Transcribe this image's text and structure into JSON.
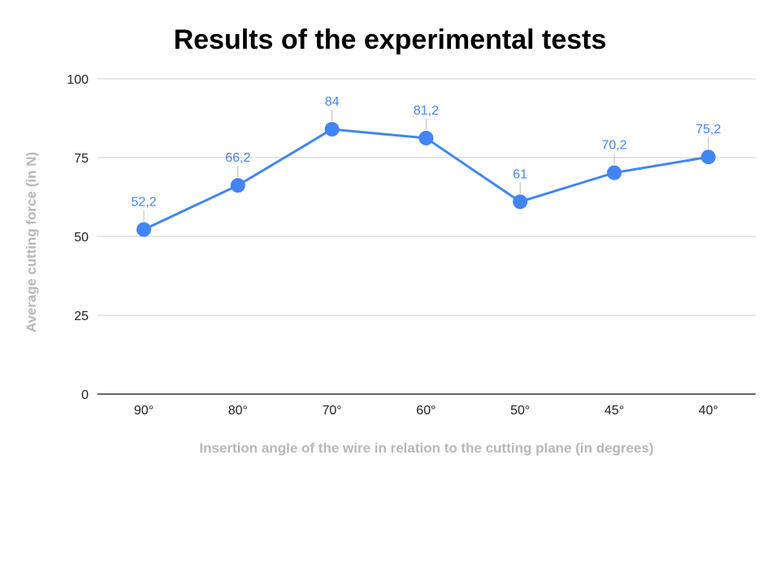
{
  "chart_data": {
    "type": "line",
    "title": "Results of the experimental tests",
    "xlabel": "Insertion angle of the wire in relation to the cutting plane (in degrees)",
    "ylabel": "Average cutting force (in N)",
    "categories": [
      "90°",
      "80°",
      "70°",
      "60°",
      "50°",
      "45°",
      "40°"
    ],
    "series": [
      {
        "values": [
          52.2,
          66.2,
          84,
          81.2,
          61,
          70.2,
          75.2
        ],
        "labels": [
          "52,2",
          "66,2",
          "84",
          "81,2",
          "61",
          "70,2",
          "75,2"
        ],
        "color": "#4285f4"
      }
    ],
    "ylim": [
      0,
      100
    ],
    "yticks": [
      0,
      25,
      50,
      75,
      100
    ],
    "ytick_labels": [
      "0",
      "25",
      "50",
      "75",
      "100"
    ],
    "grid": true,
    "legend": "none"
  }
}
